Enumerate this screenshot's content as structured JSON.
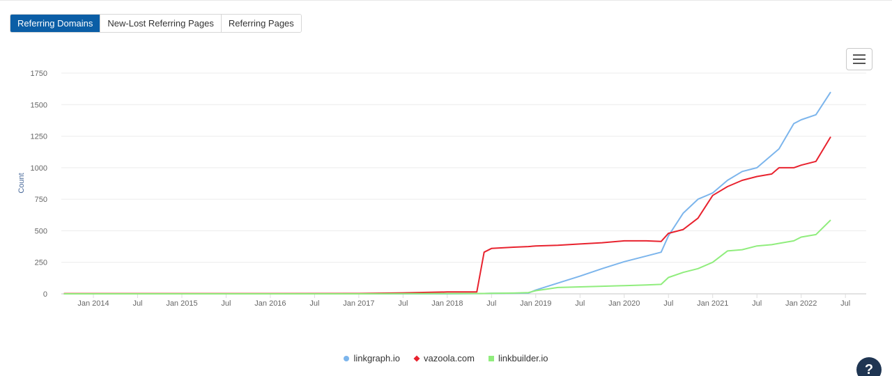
{
  "tabs": [
    {
      "label": "Referring Domains",
      "active": true
    },
    {
      "label": "New-Lost Referring Pages",
      "active": false
    },
    {
      "label": "Referring Pages",
      "active": false
    }
  ],
  "menu_button": {
    "icon": "hamburger-menu-icon"
  },
  "help_button": {
    "label": "?",
    "icon": "help-icon"
  },
  "chart_data": {
    "type": "line",
    "title": "",
    "xlabel": "",
    "ylabel": "Count",
    "ylim": [
      0,
      1750
    ],
    "yticks": [
      0,
      250,
      500,
      750,
      1000,
      1250,
      1500,
      1750
    ],
    "xticks": [
      "Jan 2014",
      "Jul",
      "Jan 2015",
      "Jul",
      "Jan 2016",
      "Jul",
      "Jan 2017",
      "Jul",
      "Jan 2018",
      "Jul",
      "Jan 2019",
      "Jul",
      "Jan 2020",
      "Jul",
      "Jan 2021",
      "Jul",
      "Jan 2022",
      "Jul"
    ],
    "grid": true,
    "legend_position": "bottom-center",
    "x": [
      "2013-09",
      "2014-01",
      "2015-01",
      "2016-01",
      "2017-01",
      "2017-07",
      "2018-01",
      "2018-05",
      "2018-06",
      "2018-07",
      "2018-10",
      "2018-12",
      "2019-01",
      "2019-04",
      "2019-07",
      "2019-10",
      "2020-01",
      "2020-04",
      "2020-06",
      "2020-07",
      "2020-09",
      "2020-11",
      "2021-01",
      "2021-03",
      "2021-05",
      "2021-07",
      "2021-09",
      "2021-10",
      "2021-12",
      "2022-01",
      "2022-03",
      "2022-05"
    ],
    "series": [
      {
        "name": "linkgraph.io",
        "color": "#7cb5ec",
        "marker": "circle",
        "values": [
          0,
          0,
          0,
          0,
          0,
          0,
          0,
          2,
          3,
          4,
          5,
          6,
          30,
          85,
          140,
          200,
          255,
          300,
          330,
          460,
          640,
          750,
          800,
          900,
          970,
          1000,
          1100,
          1150,
          1350,
          1380,
          1420,
          1600
        ]
      },
      {
        "name": "vazoola.com",
        "color": "#e8222e",
        "marker": "diamond",
        "values": [
          2,
          2,
          2,
          2,
          3,
          8,
          15,
          15,
          330,
          360,
          370,
          375,
          380,
          385,
          395,
          405,
          420,
          420,
          415,
          480,
          510,
          600,
          780,
          850,
          900,
          930,
          950,
          1000,
          1000,
          1020,
          1050,
          1245
        ]
      },
      {
        "name": "linkbuilder.io",
        "color": "#90ed7d",
        "marker": "square",
        "values": [
          0,
          0,
          0,
          0,
          0,
          1,
          2,
          3,
          3,
          4,
          6,
          10,
          25,
          50,
          55,
          60,
          65,
          70,
          75,
          130,
          170,
          200,
          250,
          340,
          350,
          380,
          390,
          400,
          420,
          450,
          470,
          585
        ]
      }
    ]
  }
}
